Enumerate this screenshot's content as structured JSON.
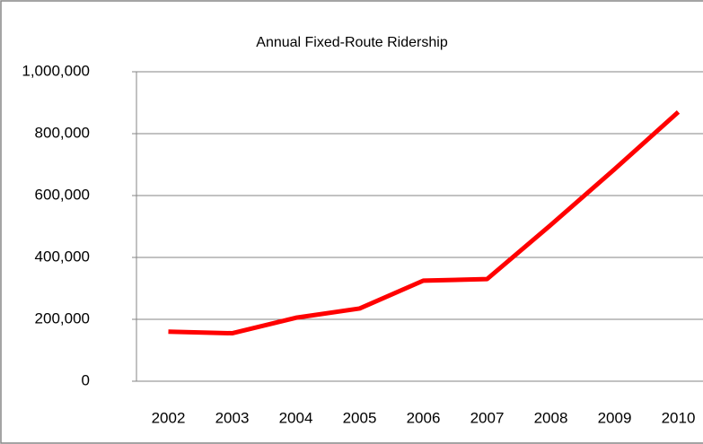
{
  "chart_data": {
    "type": "line",
    "title": "Annual Fixed-Route Ridership",
    "categories": [
      "2002",
      "2003",
      "2004",
      "2005",
      "2006",
      "2007",
      "2008",
      "2009",
      "2010"
    ],
    "series": [
      {
        "name": "Ridership",
        "color": "#ff0000",
        "values": [
          160000,
          155000,
          205000,
          235000,
          325000,
          330000,
          505000,
          685000,
          870000
        ]
      }
    ],
    "ylim": [
      0,
      1000000
    ],
    "yticks": [
      0,
      {
        "value": 200000,
        "label": "200,000"
      },
      {
        "value": 400000,
        "label": "400,000"
      },
      {
        "value": 600000,
        "label": "600,000"
      },
      {
        "value": 800000,
        "label": "800,000"
      },
      {
        "value": 1000000,
        "label": "1,000,000"
      }
    ],
    "grid": true
  }
}
